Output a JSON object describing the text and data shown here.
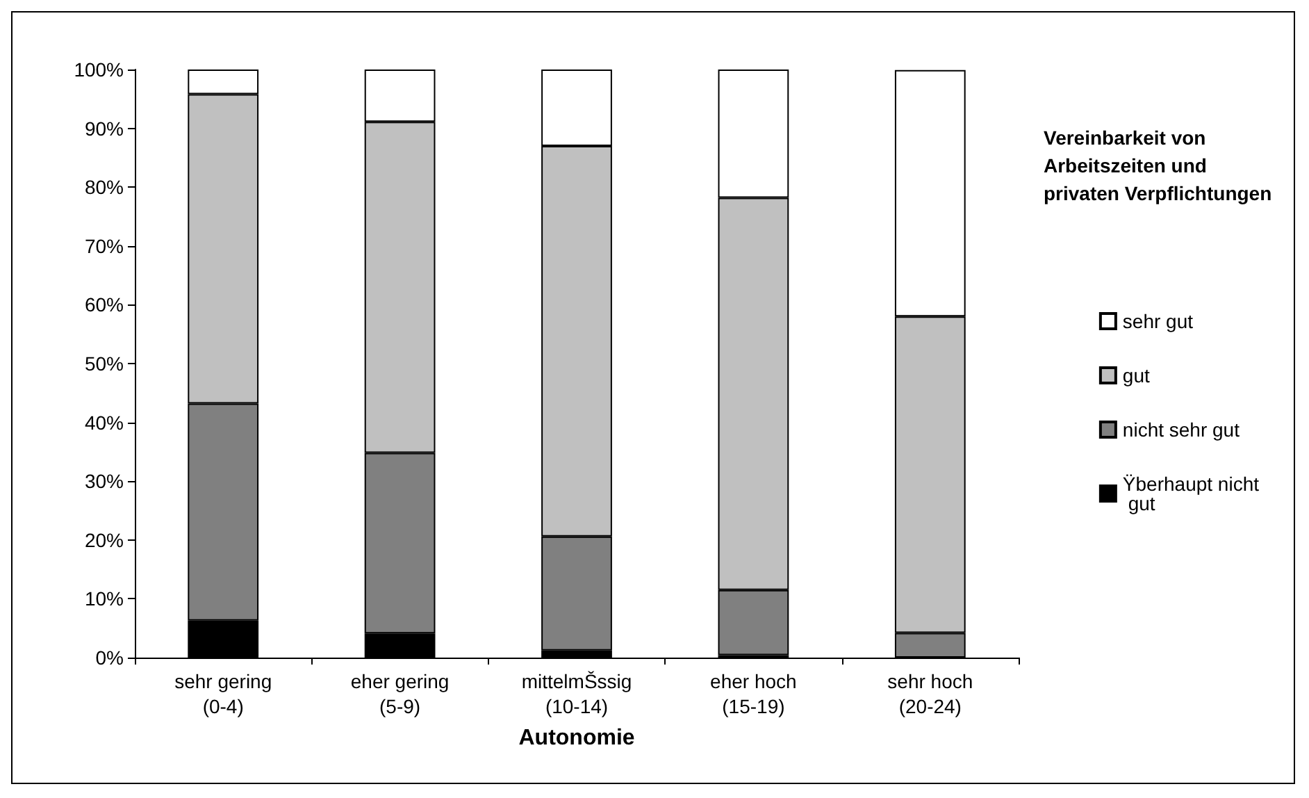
{
  "chart_data": {
    "type": "bar",
    "stacked": true,
    "xlabel": "Autonomie",
    "legend_title": "Vereinbarkeit von Arbeitszeiten und privaten Verpflichtungen",
    "categories": [
      "sehr gering\n(0-4)",
      "eher gering\n(5-9)",
      "mittelmŠssig\n(10-14)",
      "eher hoch\n(15-19)",
      "sehr hoch\n(20-24)"
    ],
    "series": [
      {
        "name": "Ÿberhaupt nicht gut",
        "color": "#000000",
        "values": [
          6.3,
          4.1,
          1.2,
          0.4,
          null
        ]
      },
      {
        "name": "nicht sehr gut",
        "color": "#808080",
        "values": [
          36.9,
          30.7,
          19.4,
          11.1,
          4.2
        ]
      },
      {
        "name": "gut",
        "color": "#c0c0c0",
        "values": [
          52.6,
          56.3,
          66.4,
          66.7,
          53.8
        ]
      },
      {
        "name": "sehr gut",
        "color": "#ffffff",
        "values": [
          4.2,
          8.9,
          13.0,
          21.8,
          41.9
        ]
      }
    ],
    "ylim": [
      0,
      100
    ],
    "yticks": [
      {
        "value": 0,
        "label": "0%"
      },
      {
        "value": 10,
        "label": "10%"
      },
      {
        "value": 20,
        "label": "20%"
      },
      {
        "value": 30,
        "label": "30%"
      },
      {
        "value": 40,
        "label": "40%"
      },
      {
        "value": 50,
        "label": "50%"
      },
      {
        "value": 60,
        "label": "60%"
      },
      {
        "value": 70,
        "label": "70%"
      },
      {
        "value": 80,
        "label": "80%"
      },
      {
        "value": 90,
        "label": "90%"
      },
      {
        "value": 100,
        "label": "100%"
      }
    ],
    "grid": false,
    "legend": "right"
  }
}
